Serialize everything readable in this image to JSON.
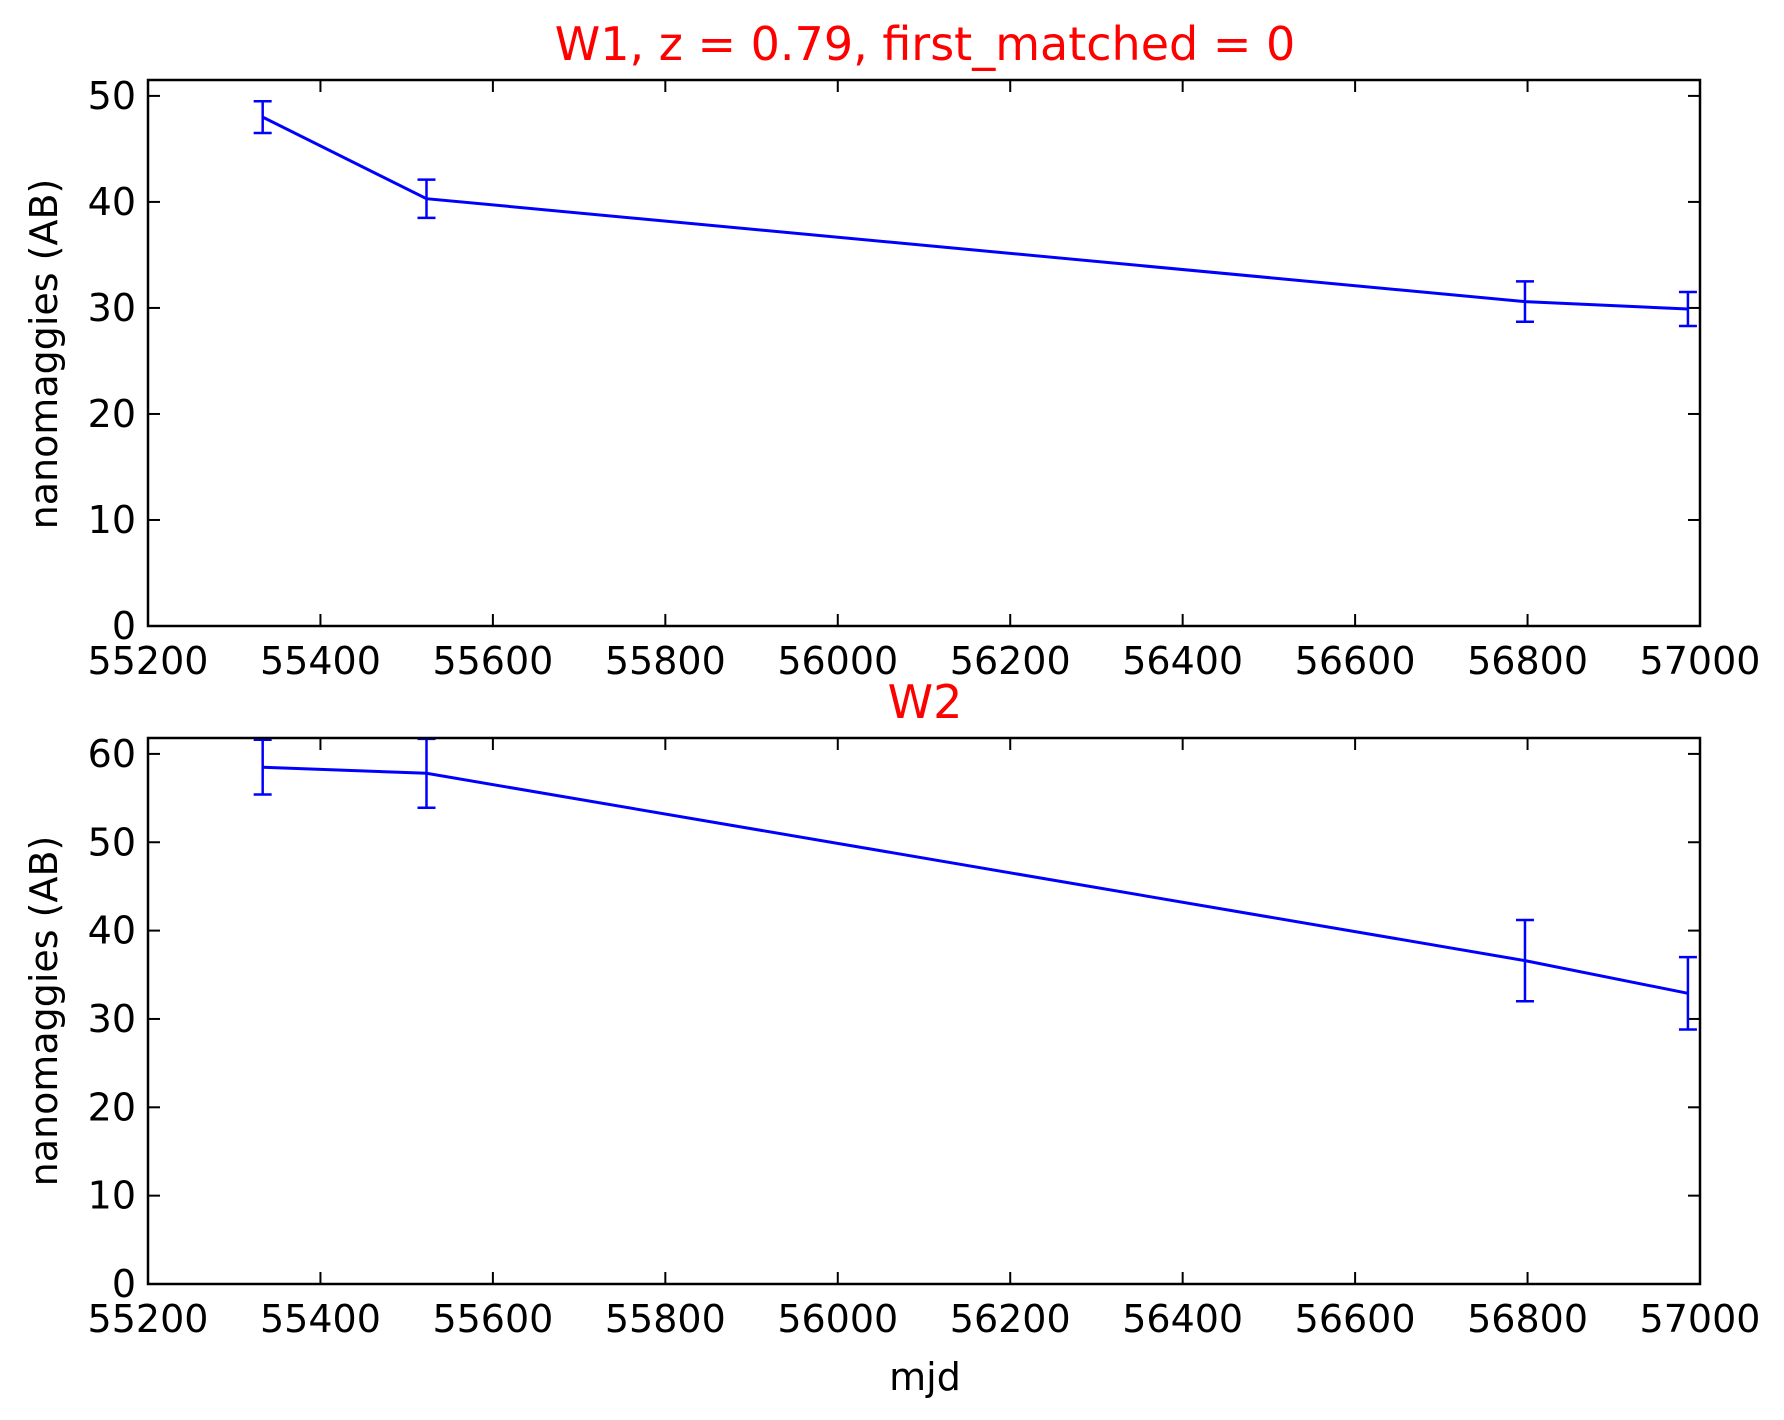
{
  "colors": {
    "line": "#0000ff",
    "title": "#ff0000",
    "axes": "#000000",
    "background": "#ffffff"
  },
  "chart_data": [
    {
      "type": "line",
      "title": "W1, z = 0.79, first_matched = 0",
      "xlabel": "",
      "ylabel": "nanomaggies (AB)",
      "xlim": [
        55200,
        57000
      ],
      "ylim": [
        0,
        50
      ],
      "xticks": [
        55200,
        55400,
        55600,
        55800,
        56000,
        56200,
        56400,
        56600,
        56800,
        57000
      ],
      "yticks": [
        0,
        10,
        20,
        30,
        40,
        50
      ],
      "grid": false,
      "series": [
        {
          "x": [
            55333,
            55523,
            56797,
            56986
          ],
          "y": [
            48.0,
            40.3,
            30.6,
            29.9
          ],
          "yerr": [
            1.5,
            1.8,
            1.9,
            1.6
          ]
        }
      ]
    },
    {
      "type": "line",
      "title": "W2",
      "xlabel": "mjd",
      "ylabel": "nanomaggies (AB)",
      "xlim": [
        55200,
        57000
      ],
      "ylim": [
        0,
        60
      ],
      "xticks": [
        55200,
        55400,
        55600,
        55800,
        56000,
        56200,
        56400,
        56600,
        56800,
        57000
      ],
      "yticks": [
        0,
        10,
        20,
        30,
        40,
        50,
        60
      ],
      "grid": false,
      "series": [
        {
          "x": [
            55333,
            55523,
            56797,
            56986
          ],
          "y": [
            58.5,
            57.8,
            36.6,
            32.9
          ],
          "yerr": [
            3.1,
            3.9,
            4.6,
            4.1
          ]
        }
      ]
    }
  ]
}
